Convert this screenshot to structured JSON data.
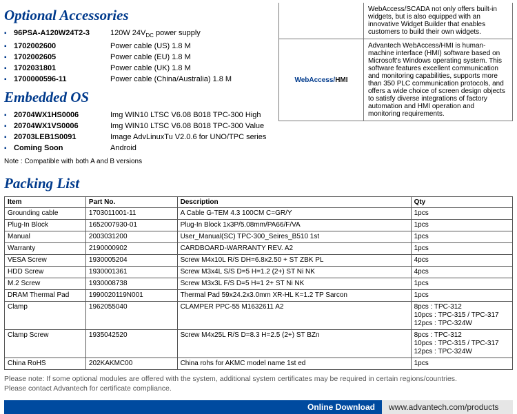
{
  "sections": {
    "optional_accessories": {
      "title": "Optional Accessories",
      "items": [
        {
          "code": "96PSA-A120W24T2-3",
          "desc": "120W 24V"
        },
        {
          "code": "1702002600",
          "desc": "Power cable (US) 1.8 M"
        },
        {
          "code": "1702002605",
          "desc": "Power cable (EU) 1.8 M"
        },
        {
          "code": "1702031801",
          "desc": "Power cable (UK) 1.8 M"
        },
        {
          "code": "1700000596-11",
          "desc": "Power cable (China/Australia) 1.8 M"
        }
      ],
      "dc_suffix": " power supply"
    },
    "embedded_os": {
      "title": "Embedded OS",
      "items": [
        {
          "code": "20704WX1HS0006",
          "desc": "Img WIN10 LTSC V6.08 B018 TPC-300 High"
        },
        {
          "code": "20704WX1VS0006",
          "desc": "Img WIN10 LTSC V6.08 B018 TPC-300 Value"
        },
        {
          "code": "20703LEB1S0091",
          "desc": "Image AdvLinuxTu V2.0.6 for UNO/TPC series"
        },
        {
          "code": "Coming Soon",
          "desc": "Android"
        }
      ],
      "note": "Note : Compatible with both A and B versions"
    },
    "packing_list": {
      "title": "Packing List",
      "headers": [
        "Item",
        "Part No.",
        "Description",
        "Qty"
      ],
      "rows": [
        [
          "Grounding cable",
          "1703011001-11",
          "A Cable G-TEM 4.3 100CM C=GR/Y",
          "1pcs"
        ],
        [
          "Plug-In Block",
          "1652007930-01",
          "Plug-In Block 1x3P/5.08mm/PA66/F/VA",
          "1pcs"
        ],
        [
          "Manual",
          "2003031200",
          "User_Manual(SC) TPC-300_Seires_B510 1st",
          "1pcs"
        ],
        [
          "Warranty",
          "2190000902",
          "CARDBOARD-WARRANTY REV. A2",
          "1pcs"
        ],
        [
          "VESA Screw",
          "1930005204",
          "Screw M4x10L R/S DH=6.8x2.50 + ST ZBK PL",
          "4pcs"
        ],
        [
          "HDD Screw",
          "1930001361",
          "Screw M3x4L S/S D=5 H=1.2 (2+) ST Ni NK",
          "4pcs"
        ],
        [
          "M.2 Screw",
          "1930008738",
          "Screw M3x3L F/S D=5 H=1 2+ ST Ni NK",
          "1pcs"
        ],
        [
          "DRAM Thermal Pad",
          "1990020119N001",
          "Thermal Pad 59x24.2x3.0mm XR-HL K=1.2 TP Sarcon",
          "1pcs"
        ],
        [
          "Clamp",
          "1962055040",
          "CLAMPER PPC-55 M1632611 A2",
          "8pcs : TPC-312\n10pcs : TPC-315 / TPC-317\n12pcs : TPC-324W"
        ],
        [
          "Clamp Screw",
          "1935042520",
          "Screw M4x25L R/S D=8.3 H=2.5 (2+) ST BZn",
          "8pcs : TPC-312\n10pcs : TPC-315 / TPC-317\n12pcs : TPC-324W"
        ],
        [
          "China RoHS",
          "202KAKMC00",
          "China rohs for AKMC model name 1st ed",
          "1pcs"
        ]
      ],
      "footnote": "Please note: If some optional modules are offered with the system, additional system certificates may be required in certain regions/countries.\nPlease contact Advantech for certificate compliance."
    }
  },
  "info_boxes": {
    "scada_tail": "WebAccess/SCADA not only offers built-in widgets, but is also equipped with an innovative Widget Builder that enables customers to build their own widgets.",
    "hmi_label_a": "WebAccess/",
    "hmi_label_b": "HMI",
    "hmi_text": "Advantech WebAccess/HMI is human-machine interface (HMI) software based on Microsoft's Windows operating system. This software features excellent communication and monitoring capabilities, supports more than 350 PLC communication protocols, and offers a wide choice of screen design objects to satisfy diverse integrations of factory automation and HMI operation and monitoring requirements."
  },
  "download_bar": {
    "label": "Online Download",
    "url": "www.advantech.com/products"
  },
  "colors": {
    "brand": "#003a8c",
    "bar": "#004a9f",
    "grid": "#555",
    "note": "#555"
  }
}
